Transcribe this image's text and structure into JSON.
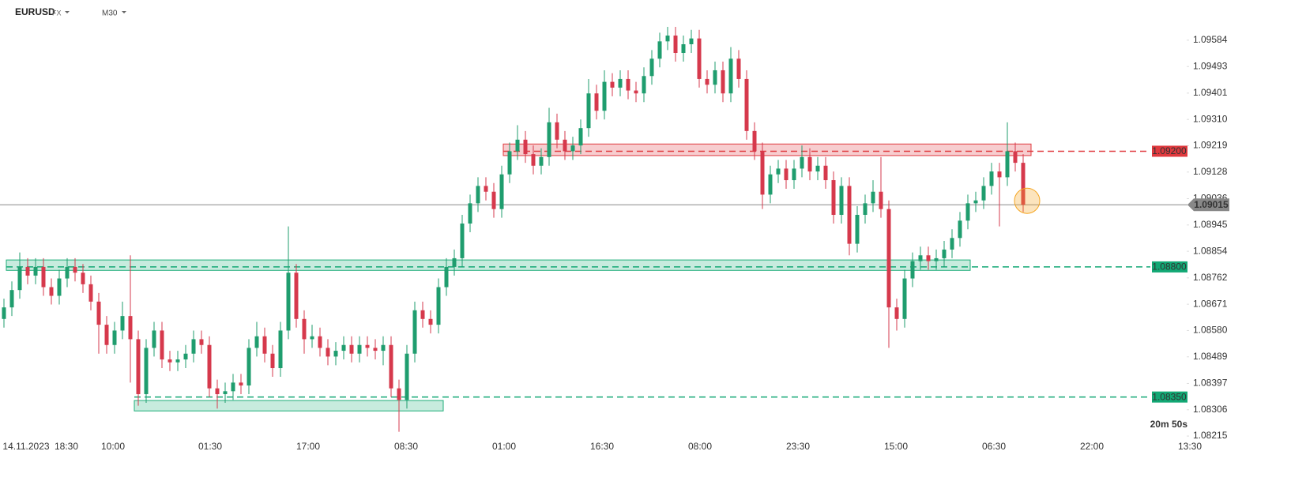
{
  "header": {
    "symbol": "EURUSD",
    "market": "FX",
    "timeframe": "M30"
  },
  "chart_data": {
    "type": "candlestick",
    "open": [
      1.0862,
      1.0866,
      1.0872,
      1.088,
      1.0877,
      1.088,
      1.0873,
      1.087,
      1.0876,
      1.088,
      1.0878,
      1.0874,
      1.0868,
      1.086,
      1.0853,
      1.0858,
      1.0863,
      1.0855,
      1.0836,
      1.0852,
      1.0858,
      1.0848,
      1.0847,
      1.0848,
      1.085,
      1.0855,
      1.0853,
      1.0838,
      1.0836,
      1.0837,
      1.084,
      1.0839,
      1.0852,
      1.0856,
      1.085,
      1.0845,
      1.0858,
      1.0878,
      1.0862,
      1.0855,
      1.0856,
      1.0852,
      1.0849,
      1.0851,
      1.0853,
      1.085,
      1.0853,
      1.0852,
      1.0851,
      1.0853,
      1.0838,
      1.0834,
      1.085,
      1.0865,
      1.0862,
      1.086,
      1.0873,
      1.088,
      1.0883,
      1.0895,
      1.0902,
      1.0908,
      1.0906,
      1.09,
      1.0912,
      1.092,
      1.0924,
      1.0919,
      1.0915,
      1.0918,
      1.093,
      1.0924,
      1.092,
      1.0922,
      1.0928,
      1.094,
      1.0934,
      1.0944,
      1.0942,
      1.0945,
      1.0941,
      1.094,
      1.0946,
      1.0952,
      1.0958,
      1.096,
      1.0954,
      1.0957,
      1.0959,
      1.0945,
      1.0943,
      1.0948,
      1.094,
      1.0952,
      1.0945,
      1.0927,
      1.092,
      1.0905,
      1.0912,
      1.0914,
      1.091,
      1.0914,
      1.0918,
      1.0913,
      1.0915,
      1.091,
      1.0898,
      1.0908,
      1.0888,
      1.0898,
      1.0902,
      1.0906,
      1.09,
      1.0866,
      1.0862,
      1.0876,
      1.0882,
      1.0884,
      1.0882,
      1.0883,
      1.0886,
      1.089,
      1.0896,
      1.0902,
      1.0903,
      1.0908,
      1.0913,
      1.0911,
      1.092,
      1.0916
    ],
    "high": [
      1.0869,
      1.0875,
      1.0885,
      1.0883,
      1.0883,
      1.0883,
      1.0876,
      1.0879,
      1.0883,
      1.0883,
      1.0881,
      1.0877,
      1.0871,
      1.0863,
      1.0861,
      1.0868,
      1.0884,
      1.0858,
      1.0855,
      1.0861,
      1.0861,
      1.0851,
      1.0851,
      1.0853,
      1.0858,
      1.0858,
      1.0856,
      1.0841,
      1.084,
      1.0843,
      1.0843,
      1.0855,
      1.0861,
      1.0859,
      1.0853,
      1.0861,
      1.0894,
      1.0881,
      1.0865,
      1.086,
      1.0859,
      1.0855,
      1.0854,
      1.0856,
      1.0856,
      1.0856,
      1.0856,
      1.0855,
      1.0856,
      1.0856,
      1.0841,
      1.0853,
      1.0868,
      1.0868,
      1.0865,
      1.0876,
      1.0883,
      1.0886,
      1.0898,
      1.0905,
      1.0911,
      1.0911,
      1.0909,
      1.0915,
      1.0923,
      1.0929,
      1.0927,
      1.0922,
      1.0921,
      1.0935,
      1.0933,
      1.0927,
      1.0925,
      1.0931,
      1.0945,
      1.0943,
      1.0948,
      1.0947,
      1.0948,
      1.0948,
      1.0944,
      1.0949,
      1.0955,
      1.0961,
      1.0963,
      1.0963,
      1.096,
      1.0962,
      1.0962,
      1.0948,
      1.0951,
      1.0951,
      1.0956,
      1.0955,
      1.0948,
      1.093,
      1.0923,
      1.0915,
      1.0917,
      1.0917,
      1.0917,
      1.0922,
      1.0921,
      1.0918,
      1.0918,
      1.0913,
      1.0911,
      1.0911,
      1.0901,
      1.0905,
      1.091,
      1.0918,
      1.0903,
      1.0869,
      1.0879,
      1.0885,
      1.0887,
      1.0887,
      1.0886,
      1.0889,
      1.0893,
      1.0899,
      1.0905,
      1.0906,
      1.0911,
      1.0916,
      1.0916,
      1.093,
      1.0923,
      1.0919
    ],
    "low": [
      1.0859,
      1.0863,
      1.0869,
      1.0874,
      1.0874,
      1.087,
      1.0867,
      1.0867,
      1.0873,
      1.0875,
      1.0871,
      1.0865,
      1.085,
      1.085,
      1.085,
      1.0855,
      1.084,
      1.0832,
      1.0833,
      1.0849,
      1.0845,
      1.0844,
      1.0844,
      1.0845,
      1.0847,
      1.085,
      1.0835,
      1.0831,
      1.0833,
      1.0834,
      1.0836,
      1.0836,
      1.0849,
      1.0847,
      1.0842,
      1.0842,
      1.0855,
      1.0859,
      1.085,
      1.0852,
      1.0849,
      1.0846,
      1.0846,
      1.0848,
      1.0847,
      1.0847,
      1.0849,
      1.0848,
      1.0846,
      1.0835,
      1.0823,
      1.0831,
      1.0847,
      1.0859,
      1.0857,
      1.0857,
      1.087,
      1.0877,
      1.088,
      1.0892,
      1.0899,
      1.0903,
      1.0897,
      1.0897,
      1.0909,
      1.0917,
      1.0916,
      1.0912,
      1.0912,
      1.0915,
      1.0921,
      1.0917,
      1.0917,
      1.0919,
      1.0925,
      1.0931,
      1.0931,
      1.0939,
      1.0939,
      1.0938,
      1.0937,
      1.0937,
      1.0943,
      1.0949,
      1.0955,
      1.0951,
      1.0951,
      1.0954,
      1.0942,
      1.094,
      1.094,
      1.0937,
      1.0937,
      1.0942,
      1.0924,
      1.0917,
      1.09,
      1.0902,
      1.0909,
      1.0907,
      1.0907,
      1.0911,
      1.091,
      1.091,
      1.0907,
      1.0895,
      1.0895,
      1.0884,
      1.0885,
      1.0895,
      1.0899,
      1.0897,
      1.0852,
      1.0858,
      1.0859,
      1.0873,
      1.0879,
      1.0879,
      1.0879,
      1.088,
      1.0883,
      1.0887,
      1.0893,
      1.0899,
      1.09,
      1.0905,
      1.0894,
      1.0908,
      1.0913,
      1.0899
    ],
    "close": [
      1.0866,
      1.0872,
      1.088,
      1.0877,
      1.088,
      1.0873,
      1.087,
      1.0876,
      1.088,
      1.0878,
      1.0874,
      1.0868,
      1.086,
      1.0853,
      1.0858,
      1.0863,
      1.0855,
      1.0836,
      1.0852,
      1.0858,
      1.0848,
      1.0847,
      1.0848,
      1.085,
      1.0855,
      1.0853,
      1.0838,
      1.0836,
      1.0837,
      1.084,
      1.0839,
      1.0852,
      1.0856,
      1.085,
      1.0845,
      1.0858,
      1.0878,
      1.0862,
      1.0855,
      1.0856,
      1.0852,
      1.0849,
      1.0851,
      1.0853,
      1.085,
      1.0853,
      1.0852,
      1.0851,
      1.0853,
      1.0838,
      1.0834,
      1.085,
      1.0865,
      1.0862,
      1.086,
      1.0873,
      1.088,
      1.0883,
      1.0895,
      1.0902,
      1.0908,
      1.0906,
      1.09,
      1.0912,
      1.092,
      1.0924,
      1.0919,
      1.0915,
      1.0918,
      1.093,
      1.0924,
      1.092,
      1.0922,
      1.0928,
      1.094,
      1.0934,
      1.0944,
      1.0942,
      1.0945,
      1.0941,
      1.094,
      1.0946,
      1.0952,
      1.0958,
      1.096,
      1.0954,
      1.0957,
      1.0959,
      1.0945,
      1.0943,
      1.0948,
      1.094,
      1.0952,
      1.0945,
      1.0927,
      1.092,
      1.0905,
      1.0912,
      1.0914,
      1.091,
      1.0914,
      1.0918,
      1.0913,
      1.0915,
      1.091,
      1.0898,
      1.0908,
      1.0888,
      1.0898,
      1.0902,
      1.0906,
      1.09,
      1.0866,
      1.0862,
      1.0876,
      1.0882,
      1.0884,
      1.0882,
      1.0883,
      1.0886,
      1.089,
      1.0896,
      1.0902,
      1.0903,
      1.0908,
      1.0913,
      1.0911,
      1.092,
      1.0916,
      1.09015
    ],
    "up_color": "#1f9d6e",
    "down_color": "#d6394c",
    "xlim": [
      -0.5,
      149.5
    ],
    "xticks": [
      {
        "value": 2.8,
        "label": "14.11.2023"
      },
      {
        "value": 7.9,
        "label": "18:30"
      },
      {
        "value": 13.8,
        "label": "10:00"
      },
      {
        "value": 26.1,
        "label": "01:30"
      },
      {
        "value": 38.5,
        "label": "17:00"
      },
      {
        "value": 50.9,
        "label": "08:30"
      },
      {
        "value": 63.3,
        "label": "01:00"
      },
      {
        "value": 75.7,
        "label": "16:30"
      },
      {
        "value": 88.1,
        "label": "08:00"
      },
      {
        "value": 100.5,
        "label": "23:30"
      },
      {
        "value": 112.9,
        "label": "15:00"
      },
      {
        "value": 125.3,
        "label": "06:30"
      },
      {
        "value": 137.7,
        "label": "22:00"
      },
      {
        "value": 150.1,
        "label": "13:30"
      }
    ],
    "ylim": [
      1.08166,
      1.09723
    ],
    "yticks": [
      1.09584,
      1.09493,
      1.09401,
      {
        "value": 1.0931,
        "label": "1.09310"
      },
      1.09219,
      1.09128,
      1.09036,
      1.08945,
      1.08854,
      1.08762,
      1.08671,
      {
        "value": 1.0858,
        "label": "1.08580"
      },
      1.08489,
      1.08397,
      1.08306,
      1.08215
    ],
    "zones": [
      {
        "from": 63.2,
        "to": 130,
        "low": 1.09185,
        "high": 1.09225,
        "color": "#e0393e"
      },
      {
        "from": 0.3,
        "to": 122.3,
        "low": 1.08788,
        "high": 1.08824,
        "color": "#1fae7a"
      },
      {
        "from": 16.5,
        "to": 55.6,
        "low": 1.08302,
        "high": 1.08338,
        "color": "#1fae7a"
      }
    ],
    "levels": [
      {
        "value": 1.092,
        "label": "1.09200",
        "color": "#e0393e"
      },
      {
        "value": 1.088,
        "label": "1.08800",
        "color": "#12a874"
      },
      {
        "value": 1.0835,
        "label": "1.08350",
        "color": "#12a874"
      }
    ],
    "last_price": 1.09015,
    "countdown": "20m 50s"
  }
}
